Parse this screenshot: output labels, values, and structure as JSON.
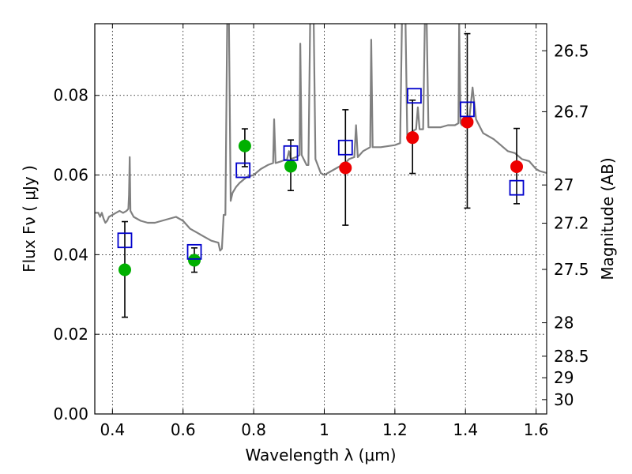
{
  "chart_data": {
    "type": "scatter",
    "xlabel": "Wavelength  λ (μm)",
    "ylabel": "Flux  Fν  ( μJy )",
    "y2label": "Magnitude (AB)",
    "xlim": [
      0.35,
      1.63
    ],
    "ylim": [
      0.0,
      0.098
    ],
    "x_ticks": [
      0.4,
      0.6,
      0.8,
      1.0,
      1.2,
      1.4,
      1.6
    ],
    "x_tick_labels": [
      "0.4",
      "0.6",
      "0.8",
      "1",
      "1.2",
      "1.4",
      "1.6"
    ],
    "y_ticks": [
      0.0,
      0.02,
      0.04,
      0.06,
      0.08
    ],
    "y_tick_labels": [
      "0.00",
      "0.02",
      "0.04",
      "0.06",
      "0.08"
    ],
    "y2_ticks": [
      {
        "label": "26.5",
        "flux": 0.0912
      },
      {
        "label": "26.7",
        "flux": 0.0759
      },
      {
        "label": "27",
        "flux": 0.0575
      },
      {
        "label": "27.2",
        "flux": 0.0479
      },
      {
        "label": "27.5",
        "flux": 0.0363
      },
      {
        "label": "28",
        "flux": 0.0229
      },
      {
        "label": "28.5",
        "flux": 0.0145
      },
      {
        "label": "29",
        "flux": 0.0091
      },
      {
        "label": "30",
        "flux": 0.0036
      }
    ],
    "grid": true,
    "colors": {
      "spectrum": "#808080",
      "model": "#0000cc",
      "green": "#00b000",
      "red": "#ee0000",
      "errorbar": "#000000"
    },
    "spectrum": [
      [
        0.35,
        0.0505
      ],
      [
        0.36,
        0.0505
      ],
      [
        0.365,
        0.0495
      ],
      [
        0.37,
        0.0505
      ],
      [
        0.375,
        0.049
      ],
      [
        0.38,
        0.048
      ],
      [
        0.385,
        0.0485
      ],
      [
        0.39,
        0.0495
      ],
      [
        0.4,
        0.05
      ],
      [
        0.41,
        0.0505
      ],
      [
        0.42,
        0.051
      ],
      [
        0.43,
        0.0505
      ],
      [
        0.44,
        0.051
      ],
      [
        0.445,
        0.0515
      ],
      [
        0.447,
        0.055
      ],
      [
        0.449,
        0.0645
      ],
      [
        0.451,
        0.051
      ],
      [
        0.46,
        0.0495
      ],
      [
        0.47,
        0.049
      ],
      [
        0.48,
        0.0485
      ],
      [
        0.5,
        0.048
      ],
      [
        0.52,
        0.048
      ],
      [
        0.54,
        0.0485
      ],
      [
        0.56,
        0.049
      ],
      [
        0.58,
        0.0495
      ],
      [
        0.6,
        0.0485
      ],
      [
        0.62,
        0.0465
      ],
      [
        0.64,
        0.0455
      ],
      [
        0.66,
        0.0445
      ],
      [
        0.68,
        0.0435
      ],
      [
        0.7,
        0.043
      ],
      [
        0.705,
        0.041
      ],
      [
        0.71,
        0.0415
      ],
      [
        0.715,
        0.05
      ],
      [
        0.72,
        0.05
      ],
      [
        0.725,
        0.0985
      ],
      [
        0.73,
        0.0985
      ],
      [
        0.735,
        0.0535
      ],
      [
        0.74,
        0.0555
      ],
      [
        0.75,
        0.057
      ],
      [
        0.76,
        0.058
      ],
      [
        0.78,
        0.0595
      ],
      [
        0.8,
        0.06
      ],
      [
        0.82,
        0.0615
      ],
      [
        0.84,
        0.0625
      ],
      [
        0.855,
        0.063
      ],
      [
        0.858,
        0.074
      ],
      [
        0.862,
        0.063
      ],
      [
        0.88,
        0.0635
      ],
      [
        0.895,
        0.064
      ],
      [
        0.9,
        0.066
      ],
      [
        0.905,
        0.064
      ],
      [
        0.92,
        0.0645
      ],
      [
        0.93,
        0.065
      ],
      [
        0.932,
        0.093
      ],
      [
        0.936,
        0.065
      ],
      [
        0.95,
        0.0625
      ],
      [
        0.955,
        0.0625
      ],
      [
        0.96,
        0.0985
      ],
      [
        0.97,
        0.0985
      ],
      [
        0.975,
        0.064
      ],
      [
        0.99,
        0.0605
      ],
      [
        1.0,
        0.06
      ],
      [
        1.02,
        0.061
      ],
      [
        1.04,
        0.062
      ],
      [
        1.06,
        0.063
      ],
      [
        1.07,
        0.064
      ],
      [
        1.085,
        0.0645
      ],
      [
        1.09,
        0.0725
      ],
      [
        1.095,
        0.0645
      ],
      [
        1.11,
        0.066
      ],
      [
        1.13,
        0.067
      ],
      [
        1.133,
        0.094
      ],
      [
        1.137,
        0.067
      ],
      [
        1.16,
        0.067
      ],
      [
        1.2,
        0.0675
      ],
      [
        1.215,
        0.068
      ],
      [
        1.22,
        0.0985
      ],
      [
        1.23,
        0.0985
      ],
      [
        1.235,
        0.07
      ],
      [
        1.25,
        0.071
      ],
      [
        1.26,
        0.0715
      ],
      [
        1.265,
        0.077
      ],
      [
        1.27,
        0.0715
      ],
      [
        1.28,
        0.0715
      ],
      [
        1.285,
        0.0985
      ],
      [
        1.29,
        0.0985
      ],
      [
        1.295,
        0.072
      ],
      [
        1.31,
        0.072
      ],
      [
        1.33,
        0.072
      ],
      [
        1.35,
        0.0725
      ],
      [
        1.37,
        0.0725
      ],
      [
        1.38,
        0.073
      ],
      [
        1.382,
        0.0985
      ],
      [
        1.386,
        0.073
      ],
      [
        1.39,
        0.0725
      ],
      [
        1.4,
        0.073
      ],
      [
        1.41,
        0.0735
      ],
      [
        1.42,
        0.082
      ],
      [
        1.43,
        0.074
      ],
      [
        1.45,
        0.0705
      ],
      [
        1.48,
        0.069
      ],
      [
        1.5,
        0.0675
      ],
      [
        1.52,
        0.066
      ],
      [
        1.54,
        0.0655
      ],
      [
        1.56,
        0.064
      ],
      [
        1.58,
        0.0635
      ],
      [
        1.6,
        0.0615
      ],
      [
        1.61,
        0.061
      ],
      [
        1.63,
        0.0605
      ]
    ],
    "series": [
      {
        "color": "#00b000",
        "points": [
          {
            "x": 0.435,
            "y": 0.0362
          },
          {
            "x": 0.632,
            "y": 0.0386
          },
          {
            "x": 0.775,
            "y": 0.0673
          },
          {
            "x": 0.905,
            "y": 0.0622
          }
        ]
      },
      {
        "color": "#ee0000",
        "points": [
          {
            "x": 1.06,
            "y": 0.0618
          },
          {
            "x": 1.25,
            "y": 0.0694
          },
          {
            "x": 1.405,
            "y": 0.0733
          },
          {
            "x": 1.545,
            "y": 0.0621
          }
        ]
      }
    ],
    "errorbars": [
      {
        "x": 0.435,
        "low": 0.0243,
        "high": 0.0483
      },
      {
        "x": 0.632,
        "low": 0.0356,
        "high": 0.0417
      },
      {
        "x": 0.775,
        "low": 0.0621,
        "high": 0.0716
      },
      {
        "x": 0.905,
        "low": 0.0561,
        "high": 0.0688
      },
      {
        "x": 1.06,
        "low": 0.0474,
        "high": 0.0764
      },
      {
        "x": 1.25,
        "low": 0.0604,
        "high": 0.0788
      },
      {
        "x": 1.405,
        "low": 0.0517,
        "high": 0.0955
      },
      {
        "x": 1.545,
        "low": 0.0528,
        "high": 0.0717
      }
    ],
    "model_points": [
      {
        "x": 0.435,
        "y": 0.0436
      },
      {
        "x": 0.632,
        "y": 0.0407
      },
      {
        "x": 0.77,
        "y": 0.0612
      },
      {
        "x": 0.905,
        "y": 0.0655
      },
      {
        "x": 1.06,
        "y": 0.0669
      },
      {
        "x": 1.255,
        "y": 0.0799
      },
      {
        "x": 1.405,
        "y": 0.0765
      },
      {
        "x": 1.545,
        "y": 0.0568
      }
    ]
  }
}
